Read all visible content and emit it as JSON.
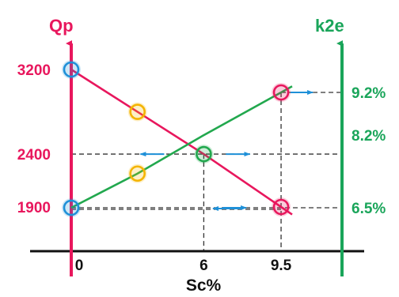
{
  "colors": {
    "left_axis": "#e8175d",
    "right_axis": "#1aa55a",
    "qp_line": "#e8175d",
    "k2e_line": "#22a84e",
    "guide": "#333333",
    "baseline": "#111111",
    "arrow": "#1e90d8",
    "marker_blue": "#1e90d8",
    "marker_yellow": "#f4b400",
    "marker_green": "#22a84e",
    "marker_pink": "#e8175d"
  },
  "chart_data": {
    "type": "line",
    "xlabel": "Sc%",
    "left_axis_title": "Qp",
    "right_axis_title": "k2e",
    "x_ticks": [
      "0",
      "6",
      "9.5"
    ],
    "left_ticks": [
      {
        "value": 3200,
        "label": "3200"
      },
      {
        "value": 2400,
        "label": "2400"
      },
      {
        "value": 1900,
        "label": "1900"
      }
    ],
    "right_ticks": [
      {
        "value": 9.2,
        "label": "9.2%"
      },
      {
        "value": 8.2,
        "label": "8.2%"
      },
      {
        "value": 6.5,
        "label": "6.5%"
      }
    ],
    "series": [
      {
        "axis": "left",
        "key": "qp",
        "x": [
          0,
          3,
          6,
          9.5
        ],
        "y": [
          3200,
          2800,
          2400,
          1900
        ],
        "extend_to_x": 10
      },
      {
        "axis": "right",
        "key": "k2e",
        "x": [
          0,
          3,
          6,
          9.5
        ],
        "y": [
          6.5,
          7.3,
          8.2,
          9.2
        ],
        "extend_to_x": 10
      }
    ],
    "markers": [
      {
        "series": "qp",
        "x": 0,
        "color": "blue"
      },
      {
        "series": "qp",
        "x": 3,
        "color": "yellow"
      },
      {
        "series": "qp",
        "x": 6,
        "color": "green"
      },
      {
        "series": "qp",
        "x": 9.5,
        "color": "pink"
      },
      {
        "series": "k2e",
        "x": 0,
        "color": "blue"
      },
      {
        "series": "k2e",
        "x": 3,
        "color": "yellow"
      },
      {
        "series": "k2e",
        "x": 9.5,
        "color": "pink"
      }
    ]
  }
}
